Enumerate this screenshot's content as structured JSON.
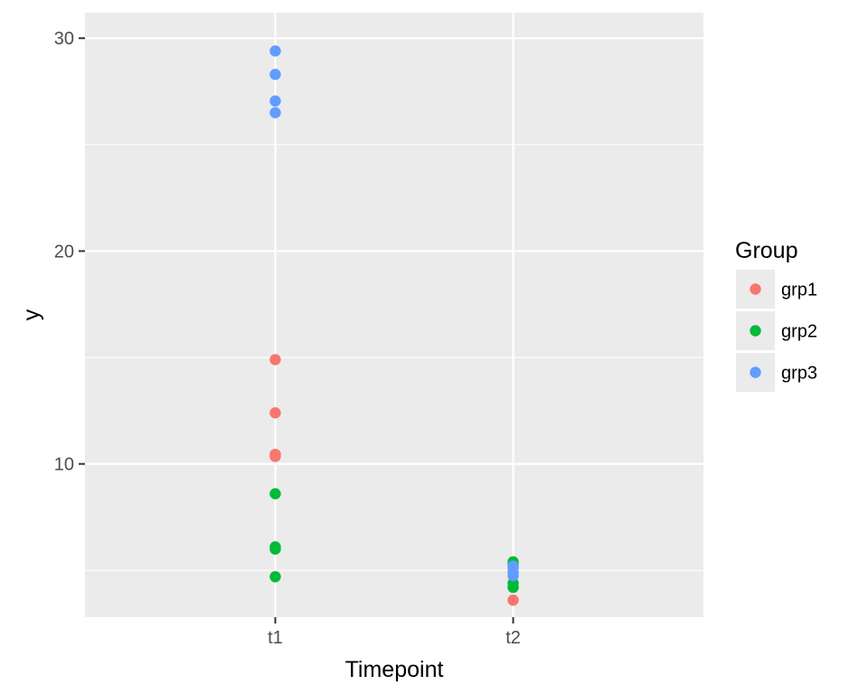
{
  "chart_data": {
    "type": "scatter",
    "xlabel": "Timepoint",
    "ylabel": "y",
    "categories": [
      "t1",
      "t2"
    ],
    "ylim": [
      2.8,
      31.2
    ],
    "yticks": [
      10,
      20,
      30
    ],
    "yticks_minor": [
      5,
      15,
      25
    ],
    "grid": true,
    "legend": {
      "title": "Group",
      "placement": "right"
    },
    "colors": {
      "panel": "#EBEBEB",
      "grid": "#FFFFFF",
      "axis_text": "#4D4D4D"
    },
    "series": [
      {
        "name": "grp1",
        "color": "#F8766D",
        "points": [
          [
            "t1",
            14.9
          ],
          [
            "t1",
            12.4
          ],
          [
            "t1",
            10.45
          ],
          [
            "t1",
            10.35
          ],
          [
            "t2",
            3.6
          ]
        ]
      },
      {
        "name": "grp2",
        "color": "#00BA38",
        "points": [
          [
            "t1",
            8.6
          ],
          [
            "t1",
            6.1
          ],
          [
            "t1",
            6.0
          ],
          [
            "t1",
            4.7
          ],
          [
            "t2",
            5.4
          ],
          [
            "t2",
            5.3
          ],
          [
            "t2",
            4.4
          ],
          [
            "t2",
            4.2
          ]
        ]
      },
      {
        "name": "grp3",
        "color": "#619CFF",
        "points": [
          [
            "t1",
            29.4
          ],
          [
            "t1",
            28.3
          ],
          [
            "t1",
            27.05
          ],
          [
            "t1",
            26.5
          ],
          [
            "t2",
            5.2
          ],
          [
            "t2",
            5.1
          ],
          [
            "t2",
            4.9
          ],
          [
            "t2",
            4.75
          ]
        ]
      }
    ]
  }
}
